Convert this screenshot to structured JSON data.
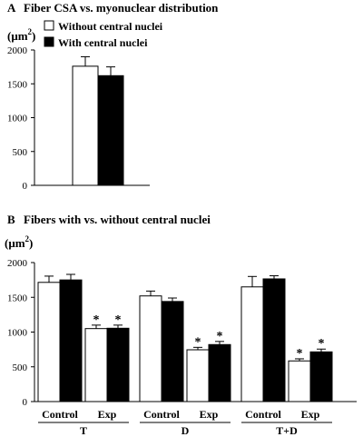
{
  "panel_a": {
    "letter": "A",
    "title": "Fiber CSA vs. myonuclear distribution",
    "unit_main": "(μm",
    "unit_sup": "2",
    "unit_close": ")",
    "legend": [
      {
        "label": "Without central nuclei",
        "fill": "#ffffff"
      },
      {
        "label": "With central nuclei",
        "fill": "#000000"
      }
    ]
  },
  "panel_b": {
    "letter": "B",
    "title": "Fibers with vs. without central nuclei",
    "unit_main": "(μm",
    "unit_sup": "2",
    "unit_close": ")"
  },
  "colors": {
    "without": "#ffffff",
    "with": "#000000",
    "stroke": "#000000"
  },
  "chart_data": [
    {
      "type": "bar",
      "ylabel": "(μm2)",
      "ylim": [
        0,
        2000
      ],
      "yticks": [
        0,
        500,
        1000,
        1500,
        2000
      ],
      "legend_position": "top-left",
      "series": [
        {
          "name": "Without central nuclei",
          "values": [
            1760
          ],
          "errors": [
            140
          ]
        },
        {
          "name": "With central nuclei",
          "values": [
            1620
          ],
          "errors": [
            130
          ]
        }
      ]
    },
    {
      "type": "bar",
      "ylabel": "(μm2)",
      "ylim": [
        0,
        2000
      ],
      "yticks": [
        0,
        500,
        1000,
        1500,
        2000
      ],
      "groups": [
        {
          "label": "T",
          "subgroups": [
            {
              "label": "Control",
              "values": [
                1715,
                1750
              ],
              "errors": [
                90,
                80
              ],
              "significant": [
                false,
                false
              ]
            },
            {
              "label": "Exp",
              "values": [
                1050,
                1055
              ],
              "errors": [
                50,
                45
              ],
              "significant": [
                true,
                true
              ]
            }
          ]
        },
        {
          "label": "D",
          "subgroups": [
            {
              "label": "Control",
              "values": [
                1520,
                1440
              ],
              "errors": [
                70,
                50
              ],
              "significant": [
                false,
                false
              ]
            },
            {
              "label": "Exp",
              "values": [
                745,
                820
              ],
              "errors": [
                35,
                45
              ],
              "significant": [
                true,
                true
              ]
            }
          ]
        },
        {
          "label": "T+D",
          "subgroups": [
            {
              "label": "Control",
              "values": [
                1650,
                1765
              ],
              "errors": [
                150,
                45
              ],
              "significant": [
                false,
                false
              ]
            },
            {
              "label": "Exp",
              "values": [
                585,
                715
              ],
              "errors": [
                30,
                40
              ],
              "significant": [
                true,
                true
              ]
            }
          ]
        }
      ],
      "significance_marker": "*"
    }
  ]
}
